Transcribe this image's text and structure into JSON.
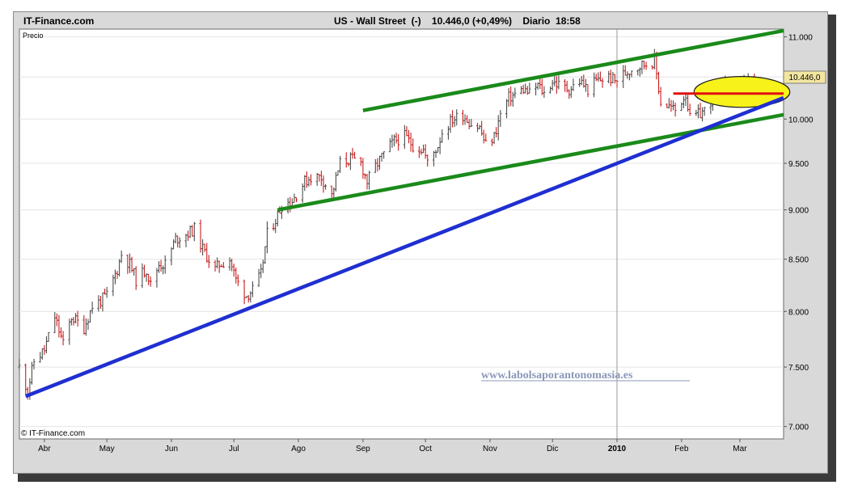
{
  "header": {
    "brand": "IT-Finance.com",
    "instrument": "US - Wall Street",
    "instrument_suffix": "(-)",
    "price": "10.446,0",
    "change": "(+0,49%)",
    "period": "Diario",
    "time": "18:58"
  },
  "footer": {
    "copyright": "© IT-Finance.com"
  },
  "watermark": "www.labolsaporantonomasia.es",
  "colors": {
    "up": "#4d4d4d",
    "down": "#c81e1e",
    "channel": "#1a8a1a",
    "support": "#1f2fd0",
    "resistance": "#e01010",
    "highlight": "#f6f21a"
  },
  "chart_data": {
    "type": "line",
    "title": "US - Wall Street",
    "ylabel": "Precio",
    "y_scale": "log",
    "ylim": [
      6900,
      11100
    ],
    "y_ticks": [
      7000,
      7500,
      8000,
      8500,
      9000,
      9500,
      10000,
      10500,
      11000
    ],
    "y_tick_labels": [
      "7.000",
      "7.500",
      "8.000",
      "8.500",
      "9.000",
      "9.500",
      "10.000",
      "",
      "11.000"
    ],
    "x_range": [
      "2009-03-20",
      "2010-03-22"
    ],
    "x_ticks": [
      {
        "date": "2009-04-01",
        "label": "Abr"
      },
      {
        "date": "2009-05-01",
        "label": "May"
      },
      {
        "date": "2009-06-01",
        "label": "Jun"
      },
      {
        "date": "2009-07-01",
        "label": "Jul"
      },
      {
        "date": "2009-08-01",
        "label": "Ago"
      },
      {
        "date": "2009-09-01",
        "label": "Sep"
      },
      {
        "date": "2009-10-01",
        "label": "Oct"
      },
      {
        "date": "2009-11-01",
        "label": "Nov"
      },
      {
        "date": "2009-12-01",
        "label": "Dic"
      },
      {
        "date": "2010-01-01",
        "label": "2010"
      },
      {
        "date": "2010-02-01",
        "label": "Feb"
      },
      {
        "date": "2010-03-01",
        "label": "Mar"
      }
    ],
    "last_price_label": "10.446,0",
    "last_price": 10446,
    "series": [
      {
        "values": [
          [
            "2009-03-20",
            7500
          ],
          [
            "2009-03-24",
            7300
          ],
          [
            "2009-03-27",
            7550
          ],
          [
            "2009-04-01",
            7650
          ],
          [
            "2009-04-06",
            7950
          ],
          [
            "2009-04-10",
            7700
          ],
          [
            "2009-04-14",
            7950
          ],
          [
            "2009-04-20",
            7850
          ],
          [
            "2009-04-24",
            8050
          ],
          [
            "2009-04-28",
            8100
          ],
          [
            "2009-05-01",
            8150
          ],
          [
            "2009-05-06",
            8400
          ],
          [
            "2009-05-08",
            8550
          ],
          [
            "2009-05-12",
            8450
          ],
          [
            "2009-05-15",
            8300
          ],
          [
            "2009-05-20",
            8400
          ],
          [
            "2009-05-22",
            8250
          ],
          [
            "2009-05-26",
            8450
          ],
          [
            "2009-05-29",
            8450
          ],
          [
            "2009-06-03",
            8700
          ],
          [
            "2009-06-08",
            8750
          ],
          [
            "2009-06-12",
            8800
          ],
          [
            "2009-06-16",
            8600
          ],
          [
            "2009-06-22",
            8400
          ],
          [
            "2009-06-24",
            8450
          ],
          [
            "2009-06-29",
            8500
          ],
          [
            "2009-07-02",
            8300
          ],
          [
            "2009-07-07",
            8150
          ],
          [
            "2009-07-10",
            8200
          ],
          [
            "2009-07-14",
            8350
          ],
          [
            "2009-07-17",
            8750
          ],
          [
            "2009-07-21",
            8900
          ],
          [
            "2009-07-24",
            9050
          ],
          [
            "2009-07-29",
            9100
          ],
          [
            "2009-08-04",
            9300
          ],
          [
            "2009-08-07",
            9350
          ],
          [
            "2009-08-12",
            9350
          ],
          [
            "2009-08-17",
            9150
          ],
          [
            "2009-08-21",
            9500
          ],
          [
            "2009-08-26",
            9550
          ],
          [
            "2009-08-31",
            9500
          ],
          [
            "2009-09-03",
            9300
          ],
          [
            "2009-09-08",
            9500
          ],
          [
            "2009-09-11",
            9600
          ],
          [
            "2009-09-16",
            9750
          ],
          [
            "2009-09-21",
            9800
          ],
          [
            "2009-09-25",
            9700
          ],
          [
            "2009-09-30",
            9650
          ],
          [
            "2009-10-02",
            9500
          ],
          [
            "2009-10-07",
            9700
          ],
          [
            "2009-10-09",
            9850
          ],
          [
            "2009-10-14",
            10000
          ],
          [
            "2009-10-19",
            10050
          ],
          [
            "2009-10-23",
            9950
          ],
          [
            "2009-10-27",
            9900
          ],
          [
            "2009-10-30",
            9700
          ],
          [
            "2009-11-03",
            9800
          ],
          [
            "2009-11-06",
            10050
          ],
          [
            "2009-11-10",
            10250
          ],
          [
            "2009-11-17",
            10350
          ],
          [
            "2009-11-20",
            10300
          ],
          [
            "2009-11-24",
            10400
          ],
          [
            "2009-11-27",
            10300
          ],
          [
            "2009-12-01",
            10450
          ],
          [
            "2009-12-04",
            10400
          ],
          [
            "2009-12-09",
            10350
          ],
          [
            "2009-12-14",
            10450
          ],
          [
            "2009-12-18",
            10350
          ],
          [
            "2009-12-22",
            10450
          ],
          [
            "2009-12-28",
            10500
          ],
          [
            "2009-12-31",
            10450
          ],
          [
            "2010-01-05",
            10550
          ],
          [
            "2010-01-08",
            10600
          ],
          [
            "2010-01-13",
            10650
          ],
          [
            "2010-01-19",
            10700
          ],
          [
            "2010-01-22",
            10200
          ],
          [
            "2010-01-26",
            10150
          ],
          [
            "2010-01-29",
            10100
          ],
          [
            "2010-02-03",
            10300
          ],
          [
            "2010-02-05",
            10000
          ],
          [
            "2010-02-09",
            10050
          ],
          [
            "2010-02-12",
            10100
          ],
          [
            "2010-02-17",
            10300
          ],
          [
            "2010-02-19",
            10400
          ],
          [
            "2010-02-23",
            10300
          ],
          [
            "2010-02-26",
            10350
          ],
          [
            "2010-03-03",
            10400
          ],
          [
            "2010-03-05",
            10450
          ],
          [
            "2010-03-09",
            10446
          ]
        ]
      }
    ],
    "trendlines": [
      {
        "role": "channel-upper",
        "color": "#1a8a1a",
        "from": [
          "2009-09-01",
          10100
        ],
        "to": [
          "2010-03-22",
          11080
        ]
      },
      {
        "role": "channel-lower",
        "color": "#1a8a1a",
        "from": [
          "2009-07-22",
          9000
        ],
        "to": [
          "2010-03-22",
          10050
        ]
      },
      {
        "role": "support",
        "color": "#1f2fd0",
        "from": [
          "2009-03-23",
          7250
        ],
        "to": [
          "2010-03-22",
          10250
        ]
      },
      {
        "role": "resistance",
        "color": "#e01010",
        "from": [
          "2010-01-28",
          10300
        ],
        "to": [
          "2010-03-22",
          10300
        ]
      }
    ],
    "highlight": {
      "shape": "ellipse",
      "center": [
        "2010-03-02",
        10320
      ],
      "date_radius": 10,
      "value_range": [
        10150,
        10520
      ]
    }
  }
}
